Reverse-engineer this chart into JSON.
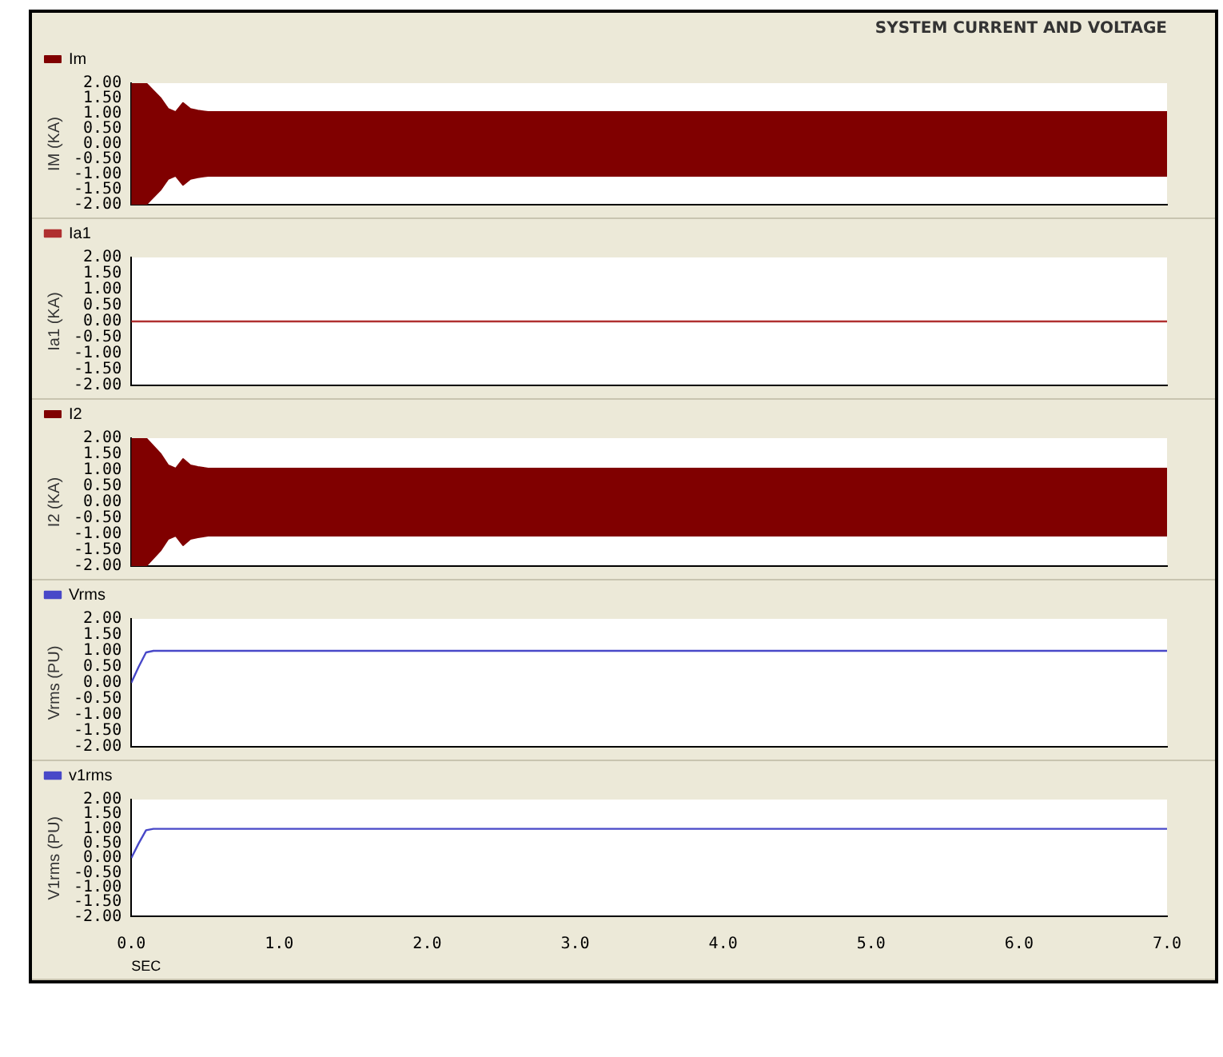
{
  "chart_data": [
    {
      "type": "area",
      "title": "SYSTEM CURRENT AND VOLTAGE",
      "ylabel": "IM (KA)",
      "legend": "top left",
      "grid": false,
      "tick_labels": "y",
      "line_style": "solid",
      "xlim": [
        0,
        7
      ],
      "ylim": [
        -2,
        2
      ],
      "yticks": [
        {
          "value": 2,
          "label": "2.00"
        },
        {
          "value": 1.5,
          "label": "1.50"
        },
        {
          "value": 1,
          "label": "1.00"
        },
        {
          "value": 0.5,
          "label": "0.50"
        },
        {
          "value": 0,
          "label": "0.00"
        },
        {
          "value": -0.5,
          "label": "-0.50"
        },
        {
          "value": -1,
          "label": "-1.00"
        },
        {
          "value": -1.5,
          "label": "-1.50"
        },
        {
          "value": -2,
          "label": "-2.00"
        }
      ],
      "series": [
        {
          "name": "Im",
          "color": "#800000",
          "x": [
            0,
            0.1,
            0.2,
            0.25,
            0.3,
            0.35,
            0.4,
            0.45,
            0.52,
            0.6,
            1,
            2,
            3,
            4,
            5,
            6,
            7
          ],
          "values": [
            2,
            2,
            1.5,
            1.15,
            1.05,
            1.35,
            1.15,
            1.1,
            1.05,
            1.05,
            1.05,
            1.05,
            1.05,
            1.05,
            1.05,
            1.05,
            1.05
          ]
        },
        {
          "color": "#800000",
          "x": [
            0,
            0.1,
            0.2,
            0.25,
            0.3,
            0.35,
            0.4,
            0.45,
            0.52,
            0.6,
            1,
            2,
            3,
            4,
            5,
            6,
            7
          ],
          "values": [
            -2,
            -2,
            -1.5,
            -1.15,
            -1.05,
            -1.35,
            -1.15,
            -1.1,
            -1.05,
            -1.05,
            -1.05,
            -1.05,
            -1.05,
            -1.05,
            -1.05,
            -1.05,
            -1.05
          ]
        }
      ]
    },
    {
      "type": "line",
      "ylabel": "Ia1 (KA)",
      "legend": "top left",
      "grid": false,
      "tick_labels": "y",
      "marker": "none",
      "line_style": "solid",
      "xlim": [
        0,
        7
      ],
      "ylim": [
        -2,
        2
      ],
      "yticks": [
        {
          "value": 2,
          "label": "2.00"
        },
        {
          "value": 1.5,
          "label": "1.50"
        },
        {
          "value": 1,
          "label": "1.00"
        },
        {
          "value": 0.5,
          "label": "0.50"
        },
        {
          "value": 0,
          "label": "0.00"
        },
        {
          "value": -0.5,
          "label": "-0.50"
        },
        {
          "value": -1,
          "label": "-1.00"
        },
        {
          "value": -1.5,
          "label": "-1.50"
        },
        {
          "value": -2,
          "label": "-2.00"
        }
      ],
      "series": [
        {
          "name": "Ia1",
          "color": "#b03030",
          "x": [
            0,
            7
          ],
          "values": [
            0,
            0
          ]
        }
      ]
    },
    {
      "type": "area",
      "ylabel": "I2 (KA)",
      "legend": "top left",
      "grid": false,
      "tick_labels": "y",
      "line_style": "solid",
      "xlim": [
        0,
        7
      ],
      "ylim": [
        -2,
        2
      ],
      "yticks": [
        {
          "value": 2,
          "label": "2.00"
        },
        {
          "value": 1.5,
          "label": "1.50"
        },
        {
          "value": 1,
          "label": "1.00"
        },
        {
          "value": 0.5,
          "label": "0.50"
        },
        {
          "value": 0,
          "label": "0.00"
        },
        {
          "value": -0.5,
          "label": "-0.50"
        },
        {
          "value": -1,
          "label": "-1.00"
        },
        {
          "value": -1.5,
          "label": "-1.50"
        },
        {
          "value": -2,
          "label": "-2.00"
        }
      ],
      "series": [
        {
          "name": "I2",
          "color": "#800000",
          "x": [
            0,
            0.1,
            0.2,
            0.25,
            0.3,
            0.35,
            0.4,
            0.45,
            0.52,
            0.6,
            1,
            2,
            3,
            4,
            5,
            6,
            7
          ],
          "values": [
            2,
            2,
            1.5,
            1.15,
            1.05,
            1.35,
            1.15,
            1.1,
            1.05,
            1.05,
            1.05,
            1.05,
            1.05,
            1.05,
            1.05,
            1.05,
            1.05
          ]
        },
        {
          "color": "#800000",
          "x": [
            0,
            0.1,
            0.2,
            0.25,
            0.3,
            0.35,
            0.4,
            0.45,
            0.52,
            0.6,
            1,
            2,
            3,
            4,
            5,
            6,
            7
          ],
          "values": [
            -2,
            -2,
            -1.5,
            -1.15,
            -1.05,
            -1.35,
            -1.15,
            -1.1,
            -1.05,
            -1.05,
            -1.05,
            -1.05,
            -1.05,
            -1.05,
            -1.05,
            -1.05,
            -1.05
          ]
        }
      ]
    },
    {
      "type": "line",
      "ylabel": "Vrms (PU)",
      "legend": "top left",
      "grid": false,
      "tick_labels": "y",
      "marker": "none",
      "line_style": "solid",
      "xlim": [
        0,
        7
      ],
      "ylim": [
        -2,
        2
      ],
      "yticks": [
        {
          "value": 2,
          "label": "2.00"
        },
        {
          "value": 1.5,
          "label": "1.50"
        },
        {
          "value": 1,
          "label": "1.00"
        },
        {
          "value": 0.5,
          "label": "0.50"
        },
        {
          "value": 0,
          "label": "0.00"
        },
        {
          "value": -0.5,
          "label": "-0.50"
        },
        {
          "value": -1,
          "label": "-1.00"
        },
        {
          "value": -1.5,
          "label": "-1.50"
        },
        {
          "value": -2,
          "label": "-2.00"
        }
      ],
      "series": [
        {
          "name": "Vrms",
          "color": "#4848c8",
          "x": [
            0,
            0.05,
            0.1,
            0.15,
            7
          ],
          "values": [
            0,
            0.5,
            0.95,
            1,
            1
          ]
        }
      ]
    },
    {
      "type": "line",
      "ylabel": "V1rms (PU)",
      "xlabel": "SEC",
      "legend": "top left",
      "grid": false,
      "marker": "none",
      "line_style": "solid",
      "xlim": [
        0,
        7
      ],
      "ylim": [
        -2,
        2
      ],
      "xticks": [
        {
          "value": 0,
          "label": "0.0"
        },
        {
          "value": 1,
          "label": "1.0"
        },
        {
          "value": 2,
          "label": "2.0"
        },
        {
          "value": 3,
          "label": "3.0"
        },
        {
          "value": 4,
          "label": "4.0"
        },
        {
          "value": 5,
          "label": "5.0"
        },
        {
          "value": 6,
          "label": "6.0"
        },
        {
          "value": 7,
          "label": "7.0"
        }
      ],
      "yticks": [
        {
          "value": 2,
          "label": "2.00"
        },
        {
          "value": 1.5,
          "label": "1.50"
        },
        {
          "value": 1,
          "label": "1.00"
        },
        {
          "value": 0.5,
          "label": "0.50"
        },
        {
          "value": 0,
          "label": "0.00"
        },
        {
          "value": -0.5,
          "label": "-0.50"
        },
        {
          "value": -1,
          "label": "-1.00"
        },
        {
          "value": -1.5,
          "label": "-1.50"
        },
        {
          "value": -2,
          "label": "-2.00"
        }
      ],
      "series": [
        {
          "name": "v1rms",
          "color": "#4848c8",
          "x": [
            0,
            0.05,
            0.1,
            0.15,
            7
          ],
          "values": [
            0,
            0.5,
            0.95,
            1,
            1
          ]
        }
      ]
    }
  ]
}
